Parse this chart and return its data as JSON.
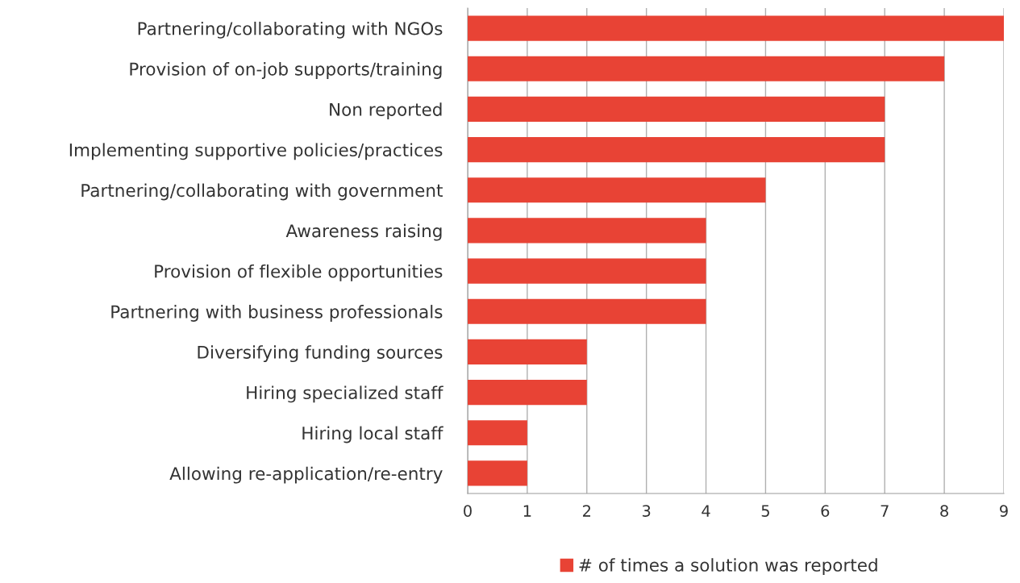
{
  "chart_data": {
    "type": "bar",
    "orientation": "horizontal",
    "categories": [
      "Partnering/collaborating with NGOs",
      "Provision of on-job supports/training",
      "Non reported",
      "Implementing supportive policies/practices",
      "Partnering/collaborating with government",
      "Awareness raising",
      "Provision of flexible opportunities",
      "Partnering with business professionals",
      "Diversifying funding sources",
      "Hiring specialized staff",
      "Hiring local staff",
      "Allowing re-application/re-entry"
    ],
    "series": [
      {
        "name": "# of times a solution was reported",
        "color": "#e84335",
        "values": [
          9,
          8,
          7,
          7,
          5,
          4,
          4,
          4,
          2,
          2,
          1,
          1
        ]
      }
    ],
    "xlim": [
      0,
      9
    ],
    "xticks": [
      0,
      1,
      2,
      3,
      4,
      5,
      6,
      7,
      8,
      9
    ],
    "grid": "x",
    "legend": "bottom"
  }
}
